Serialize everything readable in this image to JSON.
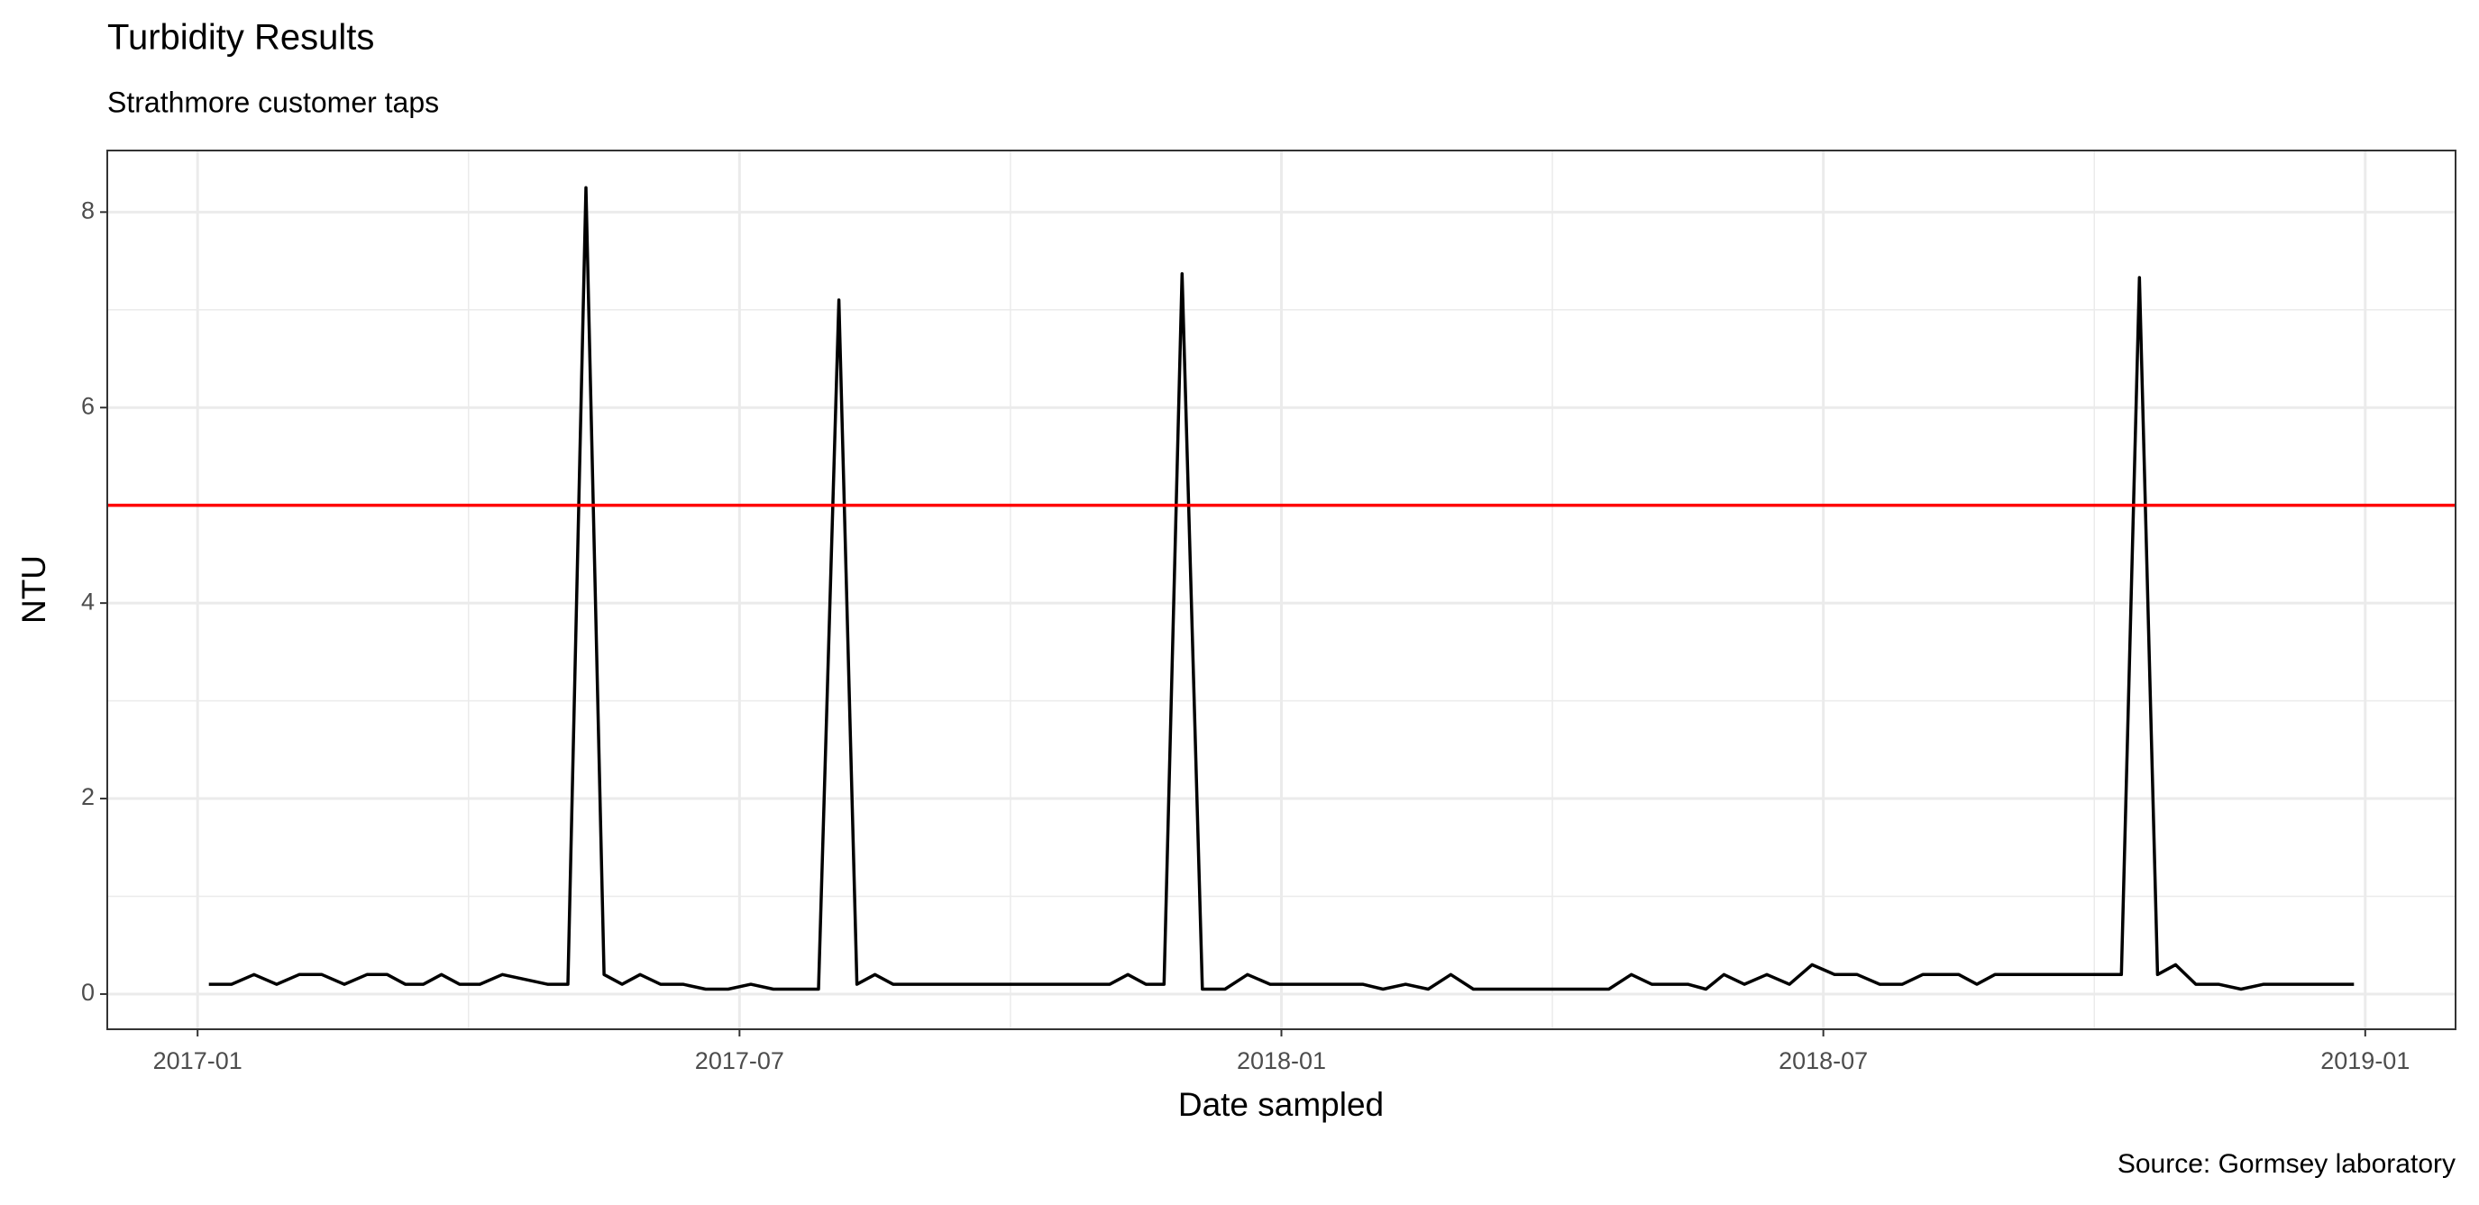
{
  "chart_data": {
    "type": "line",
    "title": "Turbidity Results",
    "subtitle": "Strathmore customer taps",
    "x_label": "Date sampled",
    "y_label": "NTU",
    "caption": "Source: Gormsey laboratory",
    "color": "#000000",
    "x": [
      "2017-01",
      "2017-01",
      "2017-01",
      "2017-01",
      "2017-02",
      "2017-02",
      "2017-02",
      "2017-02",
      "2017-03",
      "2017-03",
      "2017-03",
      "2017-03",
      "2017-03",
      "2017-04",
      "2017-04",
      "2017-04",
      "2017-04",
      "2017-05",
      "2017-05",
      "2017-05",
      "2017-05",
      "2017-05",
      "2017-06",
      "2017-06",
      "2017-06",
      "2017-06",
      "2017-07",
      "2017-07",
      "2017-07",
      "2017-07",
      "2017-08",
      "2017-08",
      "2017-08",
      "2017-08",
      "2017-08",
      "2017-09",
      "2017-09",
      "2017-09",
      "2017-09",
      "2017-10",
      "2017-10",
      "2017-10",
      "2017-10",
      "2017-11",
      "2017-11",
      "2017-11",
      "2017-11",
      "2017-11",
      "2017-12",
      "2017-12",
      "2017-12",
      "2017-12",
      "2018-01",
      "2018-01",
      "2018-01",
      "2018-01",
      "2018-01",
      "2018-02",
      "2018-02",
      "2018-02",
      "2018-02",
      "2018-03",
      "2018-03",
      "2018-03",
      "2018-03",
      "2018-04",
      "2018-04",
      "2018-04",
      "2018-04",
      "2018-05",
      "2018-05",
      "2018-05",
      "2018-05",
      "2018-05",
      "2018-06",
      "2018-06",
      "2018-06",
      "2018-06",
      "2018-07",
      "2018-07",
      "2018-07",
      "2018-07",
      "2018-08",
      "2018-08",
      "2018-08",
      "2018-08",
      "2018-08",
      "2018-09",
      "2018-09",
      "2018-09",
      "2018-09",
      "2018-10",
      "2018-10",
      "2018-10",
      "2018-10",
      "2018-10",
      "2018-11",
      "2018-11",
      "2018-11",
      "2018-11",
      "2018-12",
      "2018-12",
      "2018-12",
      "2018-12"
    ],
    "values": [
      0.1,
      0.1,
      0.2,
      0.1,
      0.2,
      0.2,
      0.1,
      0.2,
      0.2,
      0.1,
      0.1,
      0.2,
      0.1,
      0.1,
      0.2,
      0.15,
      0.1,
      0.1,
      8.25,
      0.2,
      0.1,
      0.2,
      0.1,
      0.1,
      0.05,
      0.05,
      0.1,
      0.05,
      0.05,
      0.05,
      7.1,
      0.1,
      0.2,
      0.1,
      0.1,
      0.1,
      0.1,
      0.1,
      0.1,
      0.1,
      0.1,
      0.1,
      0.1,
      0.1,
      0.2,
      0.1,
      0.1,
      7.37,
      0.05,
      0.05,
      0.2,
      0.1,
      0.1,
      0.1,
      0.1,
      0.1,
      0.1,
      0.05,
      0.1,
      0.05,
      0.2,
      0.05,
      0.05,
      0.05,
      0.05,
      0.05,
      0.05,
      0.05,
      0.2,
      0.1,
      0.1,
      0.1,
      0.05,
      0.2,
      0.1,
      0.2,
      0.1,
      0.3,
      0.2,
      0.2,
      0.1,
      0.1,
      0.2,
      0.2,
      0.2,
      0.1,
      0.2,
      0.2,
      0.2,
      0.2,
      0.2,
      0.2,
      0.2,
      7.33,
      0.2,
      0.3,
      0.1,
      0.1,
      0.05,
      0.1,
      0.1,
      0.1,
      0.1,
      0.1
    ],
    "xlim": [
      "2016-12",
      "2019-02"
    ],
    "xticks": [
      "2017-01",
      "2017-07",
      "2018-01",
      "2018-07",
      "2019-01"
    ],
    "x_minor_gridlines": [
      "2017-04",
      "2017-10",
      "2018-04",
      "2018-10"
    ],
    "ylim": [
      -0.36,
      8.63
    ],
    "yticks": [
      0,
      2,
      4,
      6,
      8
    ],
    "y_minor_gridlines": [
      1,
      3,
      5,
      7
    ],
    "grid": true,
    "reference_line": {
      "value": 5,
      "color": "#ff0000"
    }
  }
}
